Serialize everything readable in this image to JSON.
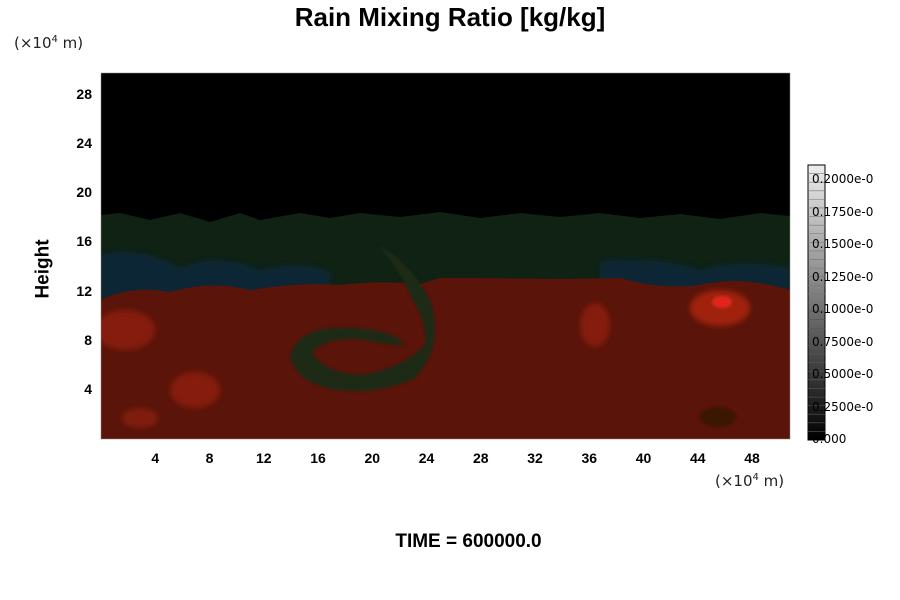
{
  "chart_data": {
    "type": "heatmap",
    "title": "Rain Mixing Ratio [kg/kg]",
    "ylabel": "Height",
    "y_unit": "(×10⁴ m)",
    "x_unit": "(×10⁴ m)",
    "x_ticks": [
      "4",
      "8",
      "12",
      "16",
      "20",
      "24",
      "28",
      "32",
      "36",
      "40",
      "44",
      "48"
    ],
    "y_ticks": [
      "4",
      "8",
      "12",
      "16",
      "20",
      "24",
      "28"
    ],
    "xlim": [
      0,
      50.8
    ],
    "ylim": [
      0,
      29.8
    ],
    "colorbar_labels": [
      "0.000",
      "0.2500e-0",
      "0.5000e-0",
      "0.7500e-0",
      "0.1000e-0",
      "0.1250e-0",
      "0.1500e-0",
      "0.1750e-0",
      "0.2000e-0"
    ],
    "colors": {
      "lower_layer": "#5a1208",
      "cloud_band": "#112516",
      "upper_empty": "#000000",
      "high_values": "#c8200c",
      "blue_band": "#0f2a3a"
    },
    "footer": "TIME = 600000.0"
  }
}
